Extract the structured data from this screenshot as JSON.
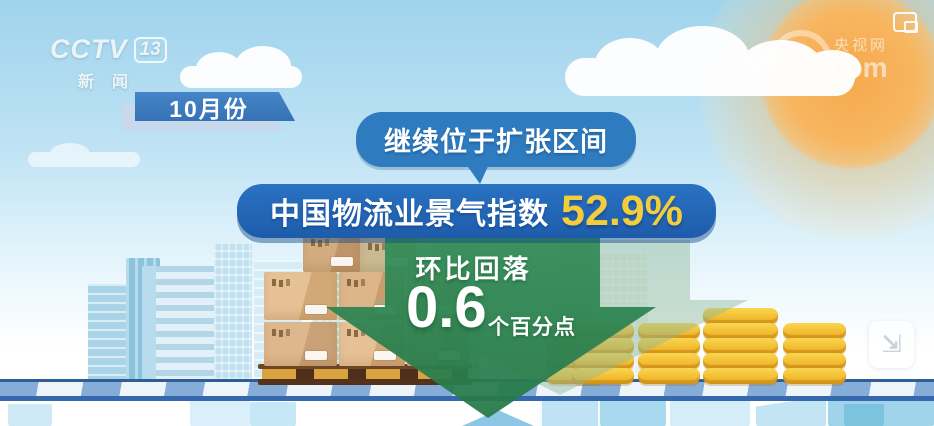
{
  "station": {
    "brand": "CCTV",
    "channel": "13",
    "channel_name": "新闻"
  },
  "watermark": {
    "brand": "CCTV",
    "brand_cn": "央视网",
    "brand_en": "com"
  },
  "period_badge": "10月份",
  "callout": "继续位于扩张区间",
  "headline": {
    "label": "中国物流业景气指数",
    "value": "52.9%"
  },
  "change": {
    "direction": "down",
    "label": "环比回落",
    "value": "0.6",
    "unit": "个百分点"
  },
  "controls": {
    "top_right_icon": "duplicate-window-icon",
    "bottom_right_icon": "shrink-corner-icon"
  },
  "colors": {
    "banner_blue": "#2263b4",
    "bubble_blue": "#2e7cbf",
    "badge_blue": "#3d7cc0",
    "value_yellow": "#f3cd3b",
    "arrow_green": "#2e8756",
    "coin_gold": "#f2c233",
    "road_stripe": "#86acd8",
    "sky_blue": "#9fd3ec",
    "sun_orange": "#f6a94d"
  },
  "scene": {
    "coin_stacks": [
      4,
      4,
      4,
      5,
      4
    ]
  }
}
